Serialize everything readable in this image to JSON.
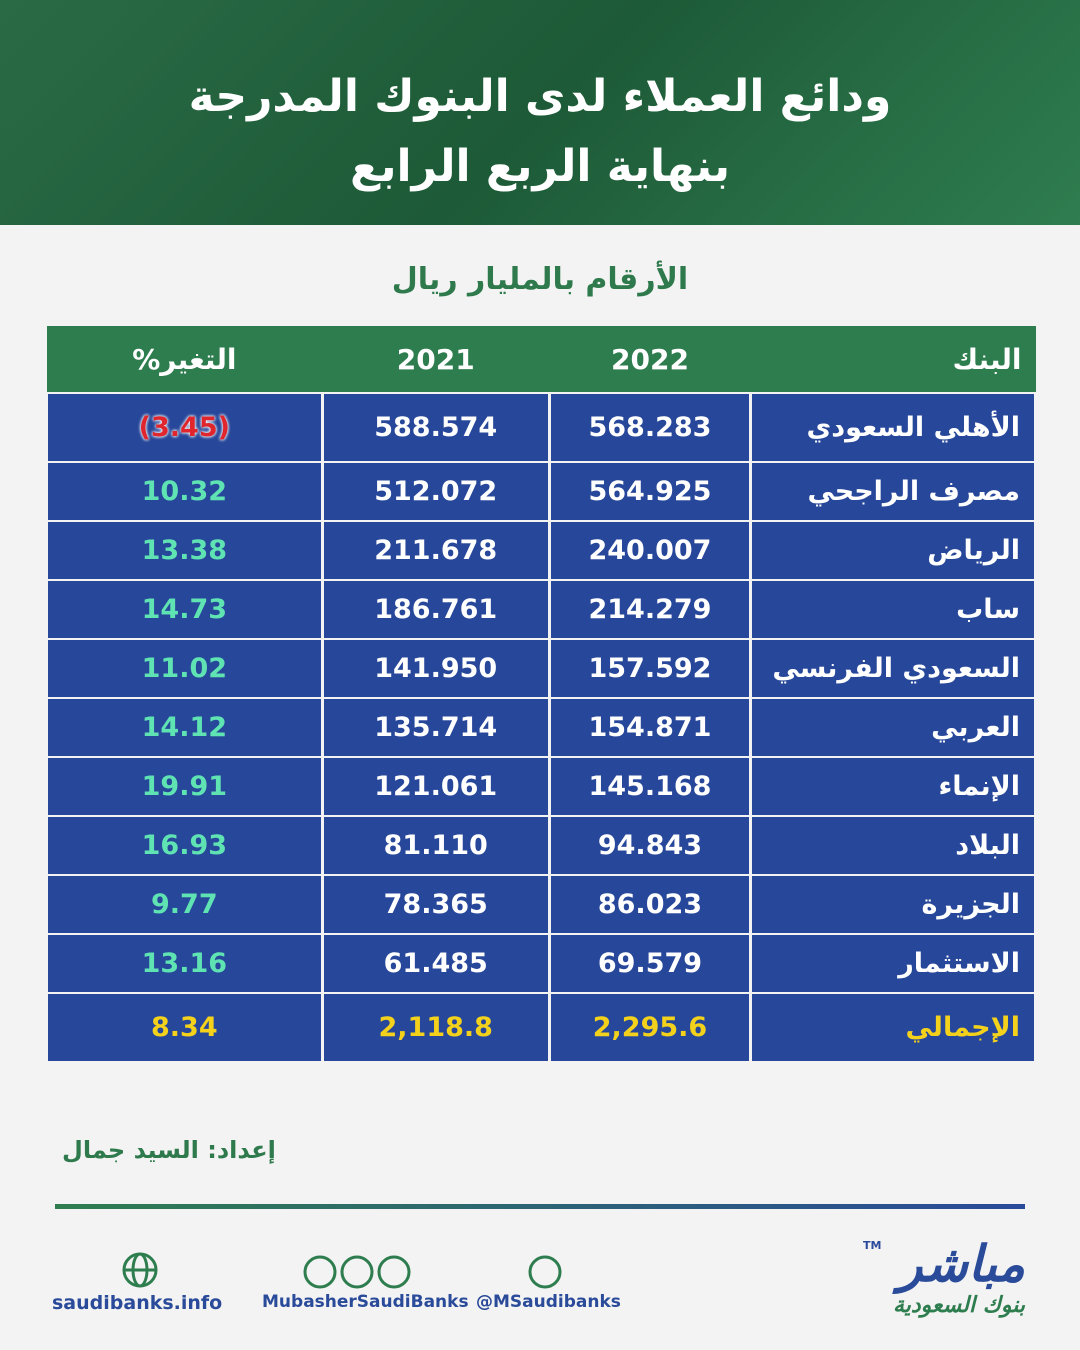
{
  "header": {
    "title_line1": "ودائع العملاء لدى البنوك المدرجة",
    "title_line2": "بنهاية الربع الرابع"
  },
  "subtitle": "الأرقام بالمليار ريال",
  "table": {
    "columns": [
      "البنك",
      "2022",
      "2021",
      "التغير%"
    ],
    "rows": [
      [
        "الأهلي السعودي",
        "568.283",
        "588.574",
        "(3.45)"
      ],
      [
        "مصرف الراجحي",
        "564.925",
        "512.072",
        "10.32"
      ],
      [
        "الرياض",
        "240.007",
        "211.678",
        "13.38"
      ],
      [
        "ساب",
        "214.279",
        "186.761",
        "14.73"
      ],
      [
        "السعودي الفرنسي",
        "157.592",
        "141.950",
        "11.02"
      ],
      [
        "العربي",
        "154.871",
        "135.714",
        "14.12"
      ],
      [
        "الإنماء",
        "145.168",
        "121.061",
        "19.91"
      ],
      [
        "البلاد",
        "94.843",
        "81.110",
        "16.93"
      ],
      [
        "الجزيرة",
        "86.023",
        "78.365",
        "9.77"
      ],
      [
        "الاستثمار",
        "69.579",
        "61.485",
        "13.16"
      ]
    ],
    "total": [
      "الإجمالي",
      "2,295.6",
      "2,118.8",
      "8.34"
    ]
  },
  "credit": "إعداد: السيد جمال",
  "footer": {
    "website": "saudibanks.info",
    "social": "MubasherSaudiBanks",
    "twitter": "@MSaudibanks",
    "logo_main": "مباشر",
    "logo_sub": "بنوك السعودية",
    "logo_tm": "TM"
  }
}
